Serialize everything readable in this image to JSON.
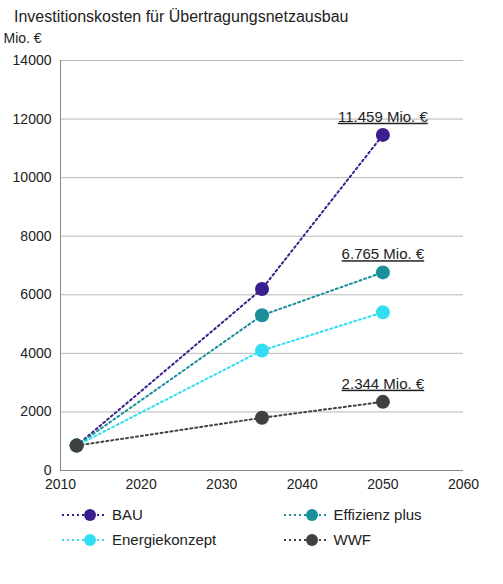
{
  "chart_data": {
    "type": "line",
    "title": "Investitionskosten für Übertragungsnetzausbau",
    "y_label": "Mio. €",
    "x": [
      2012,
      2035,
      2050
    ],
    "series": [
      {
        "name": "BAU",
        "color": "#3b1f8e",
        "values": [
          850,
          6200,
          11459
        ],
        "value_labels": [
          null,
          null,
          "11.459 Mio. €"
        ]
      },
      {
        "name": "Effizienz plus",
        "color": "#1b8f9a",
        "values": [
          850,
          5300,
          6765
        ],
        "value_labels": [
          null,
          null,
          "6.765 Mio. €"
        ]
      },
      {
        "name": "Energiekonzept",
        "color": "#33def2",
        "values": [
          850,
          4100,
          5400
        ]
      },
      {
        "name": "WWF",
        "color": "#404040",
        "values": [
          850,
          1800,
          2344
        ],
        "value_labels": [
          null,
          null,
          "2.344 Mio. €"
        ]
      }
    ],
    "xlim": [
      2010,
      2060
    ],
    "xticks": [
      2010,
      2020,
      2030,
      2040,
      2050,
      2060
    ],
    "ylim": [
      0,
      14000
    ],
    "yticks": [
      0,
      2000,
      4000,
      6000,
      8000,
      10000,
      12000,
      14000
    ],
    "grid": true,
    "legend": "bottom",
    "marker": "circle",
    "line_style": "dotted"
  }
}
